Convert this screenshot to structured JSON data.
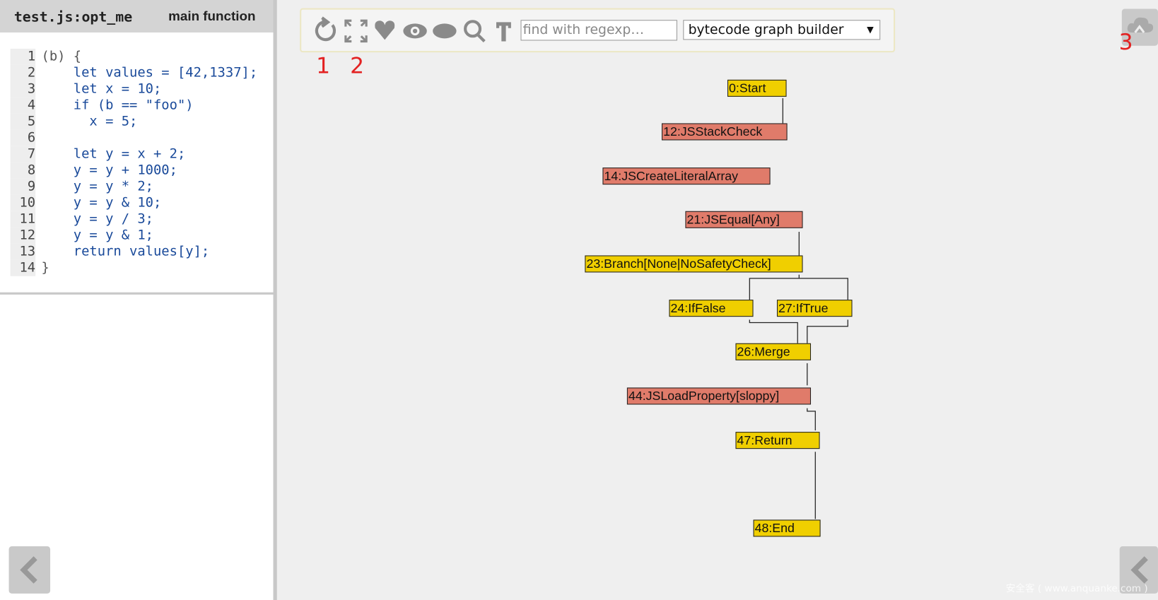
{
  "panel": {
    "file": "test.js:opt_me",
    "function": "main function",
    "lines": [
      {
        "n": 1,
        "code": "(b) {"
      },
      {
        "n": 2,
        "code": "    let values = [42,1337];"
      },
      {
        "n": 3,
        "code": "    let x = 10;"
      },
      {
        "n": 4,
        "code": "    if (b == \"foo\")"
      },
      {
        "n": 5,
        "code": "      x = 5;"
      },
      {
        "n": 6
      },
      {
        "n": 7,
        "code": "    let y = x + 2;"
      },
      {
        "n": 8,
        "code": "    y = y + 1000;"
      },
      {
        "n": 9,
        "code": "    y = y * 2;"
      },
      {
        "n": 10,
        "code": "    y = y & 10;"
      },
      {
        "n": 11,
        "code": "    y = y / 3;"
      },
      {
        "n": 12,
        "code": "    y = y & 1;"
      },
      {
        "n": 13,
        "code": "    return values[y];"
      },
      {
        "n": 14,
        "code": "}"
      }
    ]
  },
  "toolbar": {
    "search_placeholder": "find with regexp…",
    "phase": "bytecode graph builder"
  },
  "annotations": [
    "1",
    "2",
    "3"
  ],
  "nodes": [
    "0:Start",
    "12:JSStackCheck",
    "14:JSCreateLiteralArray",
    "21:JSEqual[Any]",
    "23:Branch[None|NoSafetyCheck]",
    "24:IfFalse",
    "27:IfTrue",
    "26:Merge",
    "44:JSLoadProperty[sloppy]",
    "47:Return",
    "48:End"
  ],
  "watermark": "安全客 ( www.anquanke.com )"
}
